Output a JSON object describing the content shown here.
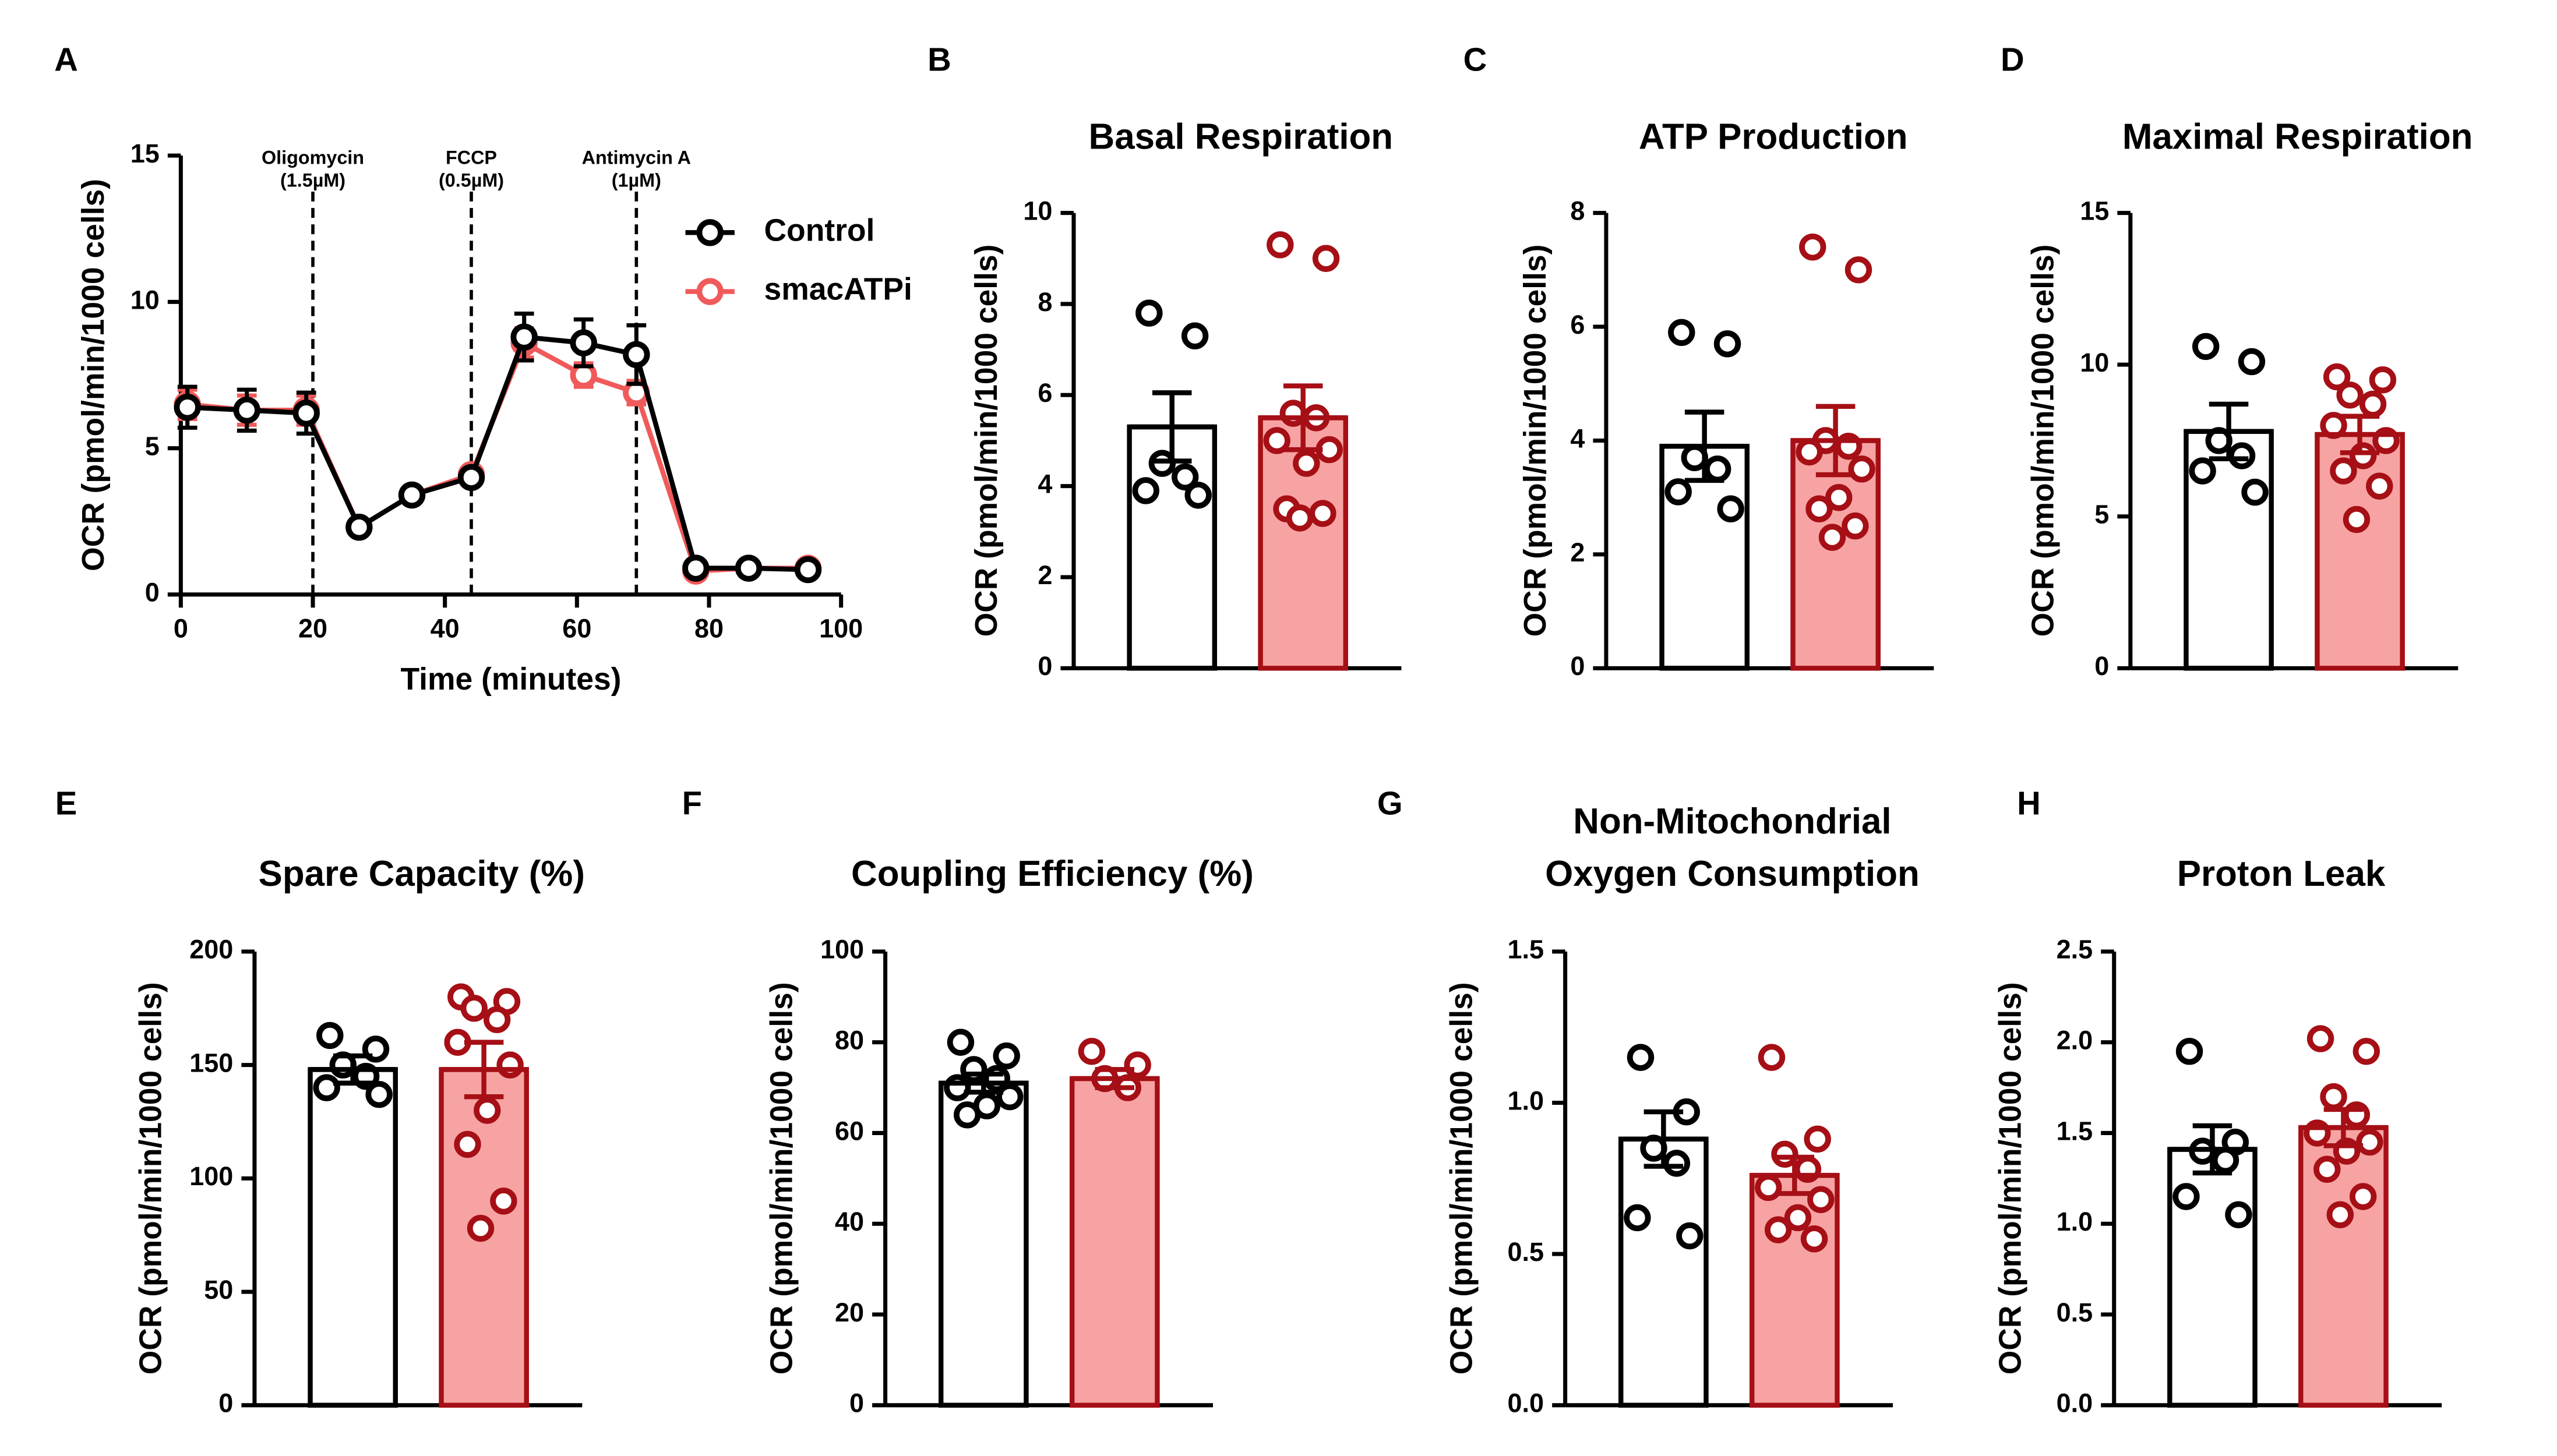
{
  "chart_data": [
    {
      "type": "line",
      "panel": "A",
      "xlabel": "Time (minutes)",
      "ylabel": "OCR (pmol/min/1000 cells)",
      "xlim": [
        0,
        100
      ],
      "xticks": [
        0,
        20,
        40,
        60,
        80,
        100
      ],
      "ylim": [
        0,
        15
      ],
      "yticks": [
        0,
        5,
        10,
        15
      ],
      "x": [
        1,
        10,
        19,
        27,
        35,
        44,
        52,
        61,
        69,
        78,
        86,
        95
      ],
      "series": [
        {
          "name": "Control",
          "color": "#000000",
          "values": [
            6.4,
            6.3,
            6.2,
            2.3,
            3.4,
            4.0,
            8.8,
            8.6,
            8.2,
            0.9,
            0.9,
            0.85
          ],
          "errors": [
            0.7,
            0.7,
            0.7,
            0.2,
            0.2,
            0.2,
            0.8,
            0.8,
            1.0,
            0.1,
            0.1,
            0.1
          ]
        },
        {
          "name": "smacATPi",
          "color": "#f05a5a",
          "values": [
            6.5,
            6.3,
            6.3,
            2.3,
            3.4,
            4.1,
            8.6,
            7.5,
            6.9,
            0.8,
            0.9,
            0.9
          ],
          "errors": [
            0.5,
            0.5,
            0.5,
            0.2,
            0.2,
            0.2,
            0.5,
            0.4,
            0.4,
            0.1,
            0.1,
            0.1
          ]
        }
      ],
      "annotations": [
        {
          "x": 20,
          "lines": [
            "Oligomycin",
            "(1.5µM)"
          ]
        },
        {
          "x": 44,
          "lines": [
            "FCCP",
            "(0.5µM)"
          ]
        },
        {
          "x": 69,
          "lines": [
            "Antimycin  A",
            "(1µM)"
          ]
        }
      ]
    },
    {
      "type": "bar",
      "panel": "B",
      "title": "Basal Respiration",
      "ylabel": "OCR (pmol/min/1000 cells)",
      "ylim": [
        0,
        10
      ],
      "yticks": [
        0,
        2,
        4,
        6,
        8,
        10
      ],
      "colors": [
        "#ffffff",
        "#f7a3a3"
      ],
      "strokes": [
        "#000000",
        "#a50f15"
      ],
      "values": [
        5.3,
        5.5
      ],
      "errors": [
        0.75,
        0.7
      ],
      "points": [
        [
          7.8,
          7.3,
          4.5,
          4.2,
          3.9,
          3.8
        ],
        [
          9.3,
          9.0,
          5.6,
          5.5,
          5.0,
          4.8,
          4.5,
          3.5,
          3.4,
          3.3
        ]
      ]
    },
    {
      "type": "bar",
      "panel": "C",
      "title": "ATP Production",
      "ylabel": "OCR (pmol/min/1000 cells)",
      "ylim": [
        0,
        8
      ],
      "yticks": [
        0,
        2,
        4,
        6,
        8
      ],
      "colors": [
        "#ffffff",
        "#f7a3a3"
      ],
      "strokes": [
        "#000000",
        "#a50f15"
      ],
      "values": [
        3.9,
        4.0
      ],
      "errors": [
        0.6,
        0.6
      ],
      "points": [
        [
          5.9,
          5.7,
          3.7,
          3.5,
          3.1,
          2.8
        ],
        [
          7.4,
          7.0,
          4.0,
          3.9,
          3.8,
          3.5,
          3.0,
          2.8,
          2.5,
          2.3
        ]
      ]
    },
    {
      "type": "bar",
      "panel": "D",
      "title": "Maximal Respiration",
      "ylabel": "OCR (pmol/min/1000 cells)",
      "ylim": [
        0,
        15
      ],
      "yticks": [
        0,
        5,
        10,
        15
      ],
      "colors": [
        "#ffffff",
        "#f7a3a3"
      ],
      "strokes": [
        "#000000",
        "#a50f15"
      ],
      "values": [
        7.8,
        7.7
      ],
      "errors": [
        0.9,
        0.6
      ],
      "points": [
        [
          10.6,
          10.1,
          7.5,
          7.0,
          6.5,
          5.8
        ],
        [
          9.6,
          9.5,
          9.0,
          8.7,
          8.0,
          7.5,
          7.0,
          6.5,
          6.0,
          4.9
        ]
      ]
    },
    {
      "type": "bar",
      "panel": "E",
      "title": "Spare Capacity (%)",
      "ylabel": "OCR (pmol/min/1000 cells)",
      "ylim": [
        0,
        200
      ],
      "yticks": [
        0,
        50,
        100,
        150,
        200
      ],
      "colors": [
        "#ffffff",
        "#f7a3a3"
      ],
      "strokes": [
        "#000000",
        "#a50f15"
      ],
      "values": [
        148,
        148
      ],
      "errors": [
        6,
        12
      ],
      "points": [
        [
          163,
          157,
          150,
          145,
          140,
          137
        ],
        [
          180,
          178,
          175,
          170,
          160,
          150,
          130,
          115,
          90,
          78
        ]
      ]
    },
    {
      "type": "bar",
      "panel": "F",
      "title": "Coupling Efficiency (%)",
      "ylabel": "OCR (pmol/min/1000 cells)",
      "ylim": [
        0,
        100
      ],
      "yticks": [
        0,
        20,
        40,
        60,
        80,
        100
      ],
      "colors": [
        "#ffffff",
        "#f7a3a3"
      ],
      "strokes": [
        "#000000",
        "#a50f15"
      ],
      "values": [
        71,
        72
      ],
      "errors": [
        2,
        2
      ],
      "points": [
        [
          80,
          77,
          74,
          72,
          70,
          68,
          66,
          64
        ],
        [
          78,
          75,
          72,
          70
        ]
      ]
    },
    {
      "type": "bar",
      "panel": "G",
      "title": [
        "Non-Mitochondrial",
        "Oxygen Consumption"
      ],
      "ylabel": "OCR (pmol/min/1000 cells)",
      "ylim": [
        0,
        1.5
      ],
      "yticks": [
        {
          "value": 0,
          "label": "0.0"
        },
        0.5,
        {
          "value": 1,
          "label": "1.0"
        },
        1.5
      ],
      "colors": [
        "#ffffff",
        "#f7a3a3"
      ],
      "strokes": [
        "#000000",
        "#a50f15"
      ],
      "values": [
        0.88,
        0.76
      ],
      "errors": [
        0.09,
        0.06
      ],
      "points": [
        [
          1.15,
          0.97,
          0.85,
          0.8,
          0.62,
          0.56
        ],
        [
          1.15,
          0.88,
          0.83,
          0.78,
          0.72,
          0.68,
          0.62,
          0.58,
          0.55
        ]
      ]
    },
    {
      "type": "bar",
      "panel": "H",
      "title": "Proton Leak",
      "ylabel": "OCR (pmol/min/1000 cells)",
      "ylim": [
        0,
        2.5
      ],
      "yticks": [
        {
          "value": 0,
          "label": "0.0"
        },
        0.5,
        {
          "value": 1,
          "label": "1.0"
        },
        1.5,
        {
          "value": 2,
          "label": "2.0"
        },
        2.5
      ],
      "colors": [
        "#ffffff",
        "#f7a3a3"
      ],
      "strokes": [
        "#000000",
        "#a50f15"
      ],
      "values": [
        1.41,
        1.53
      ],
      "errors": [
        0.13,
        0.1
      ],
      "points": [
        [
          1.95,
          1.45,
          1.4,
          1.35,
          1.15,
          1.05
        ],
        [
          2.02,
          1.95,
          1.7,
          1.6,
          1.5,
          1.45,
          1.4,
          1.3,
          1.15,
          1.05
        ]
      ]
    }
  ]
}
